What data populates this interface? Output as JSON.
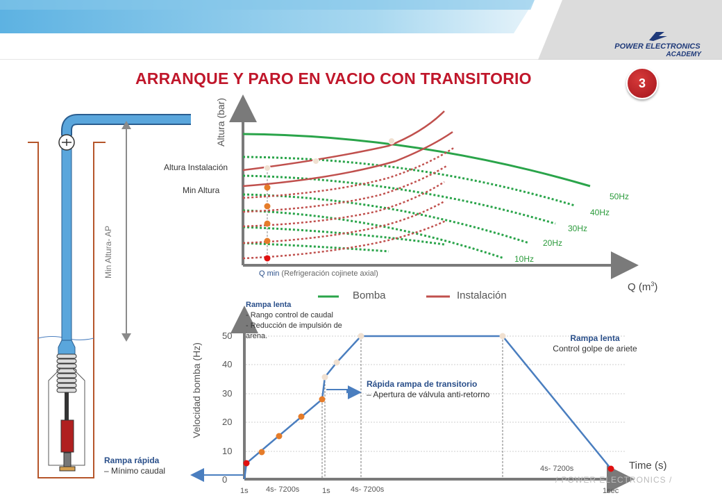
{
  "slide": {
    "title": "ARRANQUE Y PARO EN VACIO CON TRANSITORIO",
    "number": "3",
    "brand_line1": "POWER ELECTRONICS",
    "brand_line2": "ACADEMY",
    "footer_mark": "/ POWER ELECTRONICS /"
  },
  "well": {
    "label": "Min Altura- AP"
  },
  "pump_chart": {
    "ylabel": "Altura (bar)",
    "xlabel": "Q (m3)",
    "xlabel_base": "Q (m",
    "xlabel_sup": "3",
    "xlabel_end": ")",
    "qmin_bold": "Q min",
    "qmin_note": " (Refrigeración cojinete axial)",
    "altura_instalacion": "Altura Instalación",
    "min_altura": "Min Altura",
    "freq_labels": [
      "50Hz",
      "40Hz",
      "30Hz",
      "20Hz",
      "10Hz"
    ],
    "legend": {
      "bomba": "Bomba",
      "instalacion": "Instalación",
      "bomba_color": "#2aa44a",
      "instalacion_color": "#c0504d"
    }
  },
  "speed_chart": {
    "ylabel": "Velocidad bomba (Hz)",
    "xlabel": "Time (s)",
    "y_ticks": [
      "0",
      "10",
      "20",
      "30",
      "40",
      "50"
    ],
    "x_time_labels": [
      "1s",
      "4s- 7200s",
      "1s",
      "4s- 7200s",
      "4s- 7200s",
      "1sec"
    ],
    "line_color": "#4a7ebf"
  },
  "notes": {
    "rampa_lenta_1_title": "Rampa lenta",
    "rampa_lenta_1_line1": "- Rango control de caudal",
    "rampa_lenta_1_line2": "- Reducción de impulsión de",
    "rampa_lenta_1_line3": "arena.",
    "rapida_title": "Rápida rampa de transitorio",
    "rapida_line": "– Apertura de válvula anti-retorno",
    "rampa_lenta_2_title": "Rampa lenta",
    "rampa_lenta_2_line": "Control golpe de ariete",
    "rampa_rapida_title": "Rampa rápida",
    "rampa_rapida_line": "– Mínimo caudal"
  }
}
